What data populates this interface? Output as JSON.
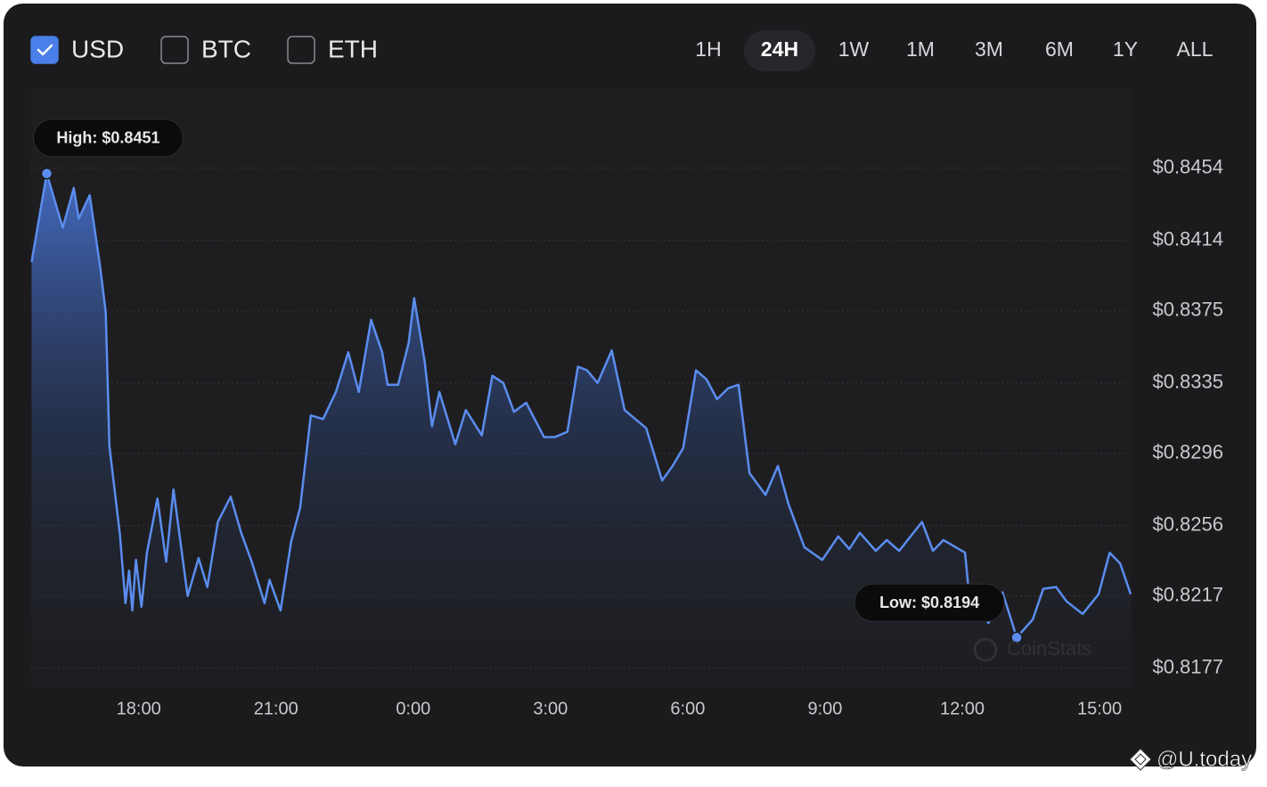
{
  "controls": {
    "currencies": [
      {
        "label": "USD",
        "checked": true
      },
      {
        "label": "BTC",
        "checked": false
      },
      {
        "label": "ETH",
        "checked": false
      }
    ],
    "ranges": [
      "1H",
      "24H",
      "1W",
      "1M",
      "3M",
      "6M",
      "1Y",
      "ALL"
    ],
    "active_range": "24H"
  },
  "watermark": "CoinStats",
  "footer": "@U.today",
  "chart_data": {
    "type": "area",
    "annotations": {
      "high": "High: $0.8451",
      "low": "Low: $0.8194"
    },
    "x": [
      15.66,
      15.99,
      16.34,
      16.58,
      16.69,
      16.93,
      17.16,
      17.28,
      17.36,
      17.59,
      17.71,
      17.79,
      17.86,
      17.94,
      18.06,
      18.18,
      18.41,
      18.6,
      18.76,
      19.07,
      19.31,
      19.5,
      19.73,
      20.01,
      20.24,
      20.47,
      20.75,
      20.86,
      21.1,
      21.21,
      21.33,
      21.53,
      21.76,
      22.03,
      22.31,
      22.58,
      22.81,
      23.08,
      23.32,
      23.44,
      23.67,
      23.9,
      24.02,
      24.25,
      24.41,
      24.57,
      24.92,
      25.15,
      25.5,
      25.73,
      25.97,
      26.2,
      26.47,
      26.86,
      27.1,
      27.37,
      27.6,
      27.8,
      28.03,
      28.34,
      28.62,
      29.09,
      29.44,
      29.67,
      29.9,
      30.18,
      30.41,
      30.64,
      30.88,
      31.11,
      31.35,
      31.7,
      31.97,
      32.2,
      32.55,
      32.94,
      33.29,
      33.53,
      33.76,
      34.11,
      34.35,
      34.62,
      35.12,
      35.36,
      35.59,
      36.06,
      36.14,
      36.57,
      36.88,
      37.19,
      37.54,
      37.77,
      38.05,
      38.28,
      38.63,
      38.98,
      39.22,
      39.45,
      39.68
    ],
    "series": [
      {
        "name": "USD",
        "color": "#5b8def",
        "values": [
          0.8402,
          0.8451,
          0.8421,
          0.8443,
          0.8426,
          0.8439,
          0.8399,
          0.8374,
          0.83,
          0.8251,
          0.8213,
          0.8231,
          0.8209,
          0.8237,
          0.8211,
          0.8241,
          0.8271,
          0.8236,
          0.8276,
          0.8217,
          0.8238,
          0.8222,
          0.8258,
          0.8272,
          0.8252,
          0.8236,
          0.8213,
          0.8226,
          0.8209,
          0.8227,
          0.8247,
          0.8266,
          0.8317,
          0.8315,
          0.833,
          0.8352,
          0.833,
          0.837,
          0.8352,
          0.8334,
          0.8334,
          0.8357,
          0.8382,
          0.8347,
          0.8311,
          0.833,
          0.8301,
          0.832,
          0.8306,
          0.8339,
          0.8335,
          0.8319,
          0.8324,
          0.8305,
          0.8305,
          0.8308,
          0.8344,
          0.8342,
          0.8335,
          0.8353,
          0.832,
          0.831,
          0.8281,
          0.8289,
          0.8299,
          0.8342,
          0.8337,
          0.8326,
          0.8332,
          0.8334,
          0.8285,
          0.8273,
          0.8289,
          0.8268,
          0.8244,
          0.8237,
          0.825,
          0.8243,
          0.8252,
          0.8242,
          0.8248,
          0.8242,
          0.8258,
          0.8242,
          0.8248,
          0.8241,
          0.822,
          0.8202,
          0.8219,
          0.8194,
          0.8204,
          0.8221,
          0.8222,
          0.8214,
          0.8207,
          0.8218,
          0.8241,
          0.8235,
          0.8218
        ]
      }
    ],
    "xlim": [
      15.65,
      39.7
    ],
    "xticks": [
      {
        "value": 18,
        "label": "18:00"
      },
      {
        "value": 21,
        "label": "21:00"
      },
      {
        "value": 24,
        "label": "0:00"
      },
      {
        "value": 27,
        "label": "3:00"
      },
      {
        "value": 30,
        "label": "6:00"
      },
      {
        "value": 33,
        "label": "9:00"
      },
      {
        "value": 36,
        "label": "12:00"
      },
      {
        "value": 39,
        "label": "15:00"
      }
    ],
    "ylim": [
      0.8166,
      0.8478
    ],
    "yticks": [
      {
        "value": 0.8454,
        "label": "$0.8454"
      },
      {
        "value": 0.8414,
        "label": "$0.8414"
      },
      {
        "value": 0.8375,
        "label": "$0.8375"
      },
      {
        "value": 0.8335,
        "label": "$0.8335"
      },
      {
        "value": 0.8296,
        "label": "$0.8296"
      },
      {
        "value": 0.8256,
        "label": "$0.8256"
      },
      {
        "value": 0.8217,
        "label": "$0.8217"
      },
      {
        "value": 0.8177,
        "label": "$0.8177"
      }
    ],
    "grid": true
  }
}
